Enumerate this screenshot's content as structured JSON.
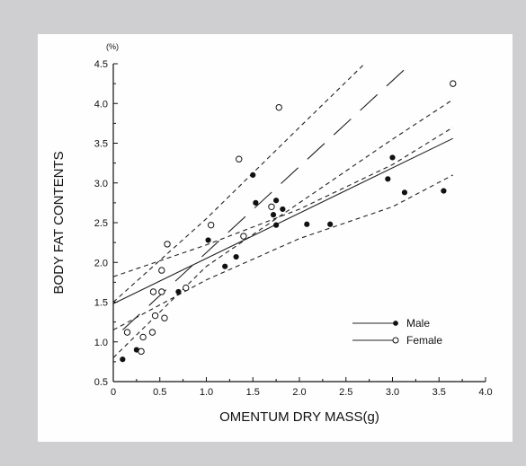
{
  "chart_data": {
    "type": "scatter",
    "xlabel": "OMENTUM DRY MASS(g)",
    "ylabel": "BODY FAT CONTENTS",
    "y_unit": "(%)",
    "xlim": [
      0,
      4.0
    ],
    "ylim": [
      0.5,
      4.5
    ],
    "x_ticks": [
      "0",
      "0.5",
      "1.0",
      "1.5",
      "2.0",
      "2.5",
      "3.0",
      "3.5",
      "4.0"
    ],
    "y_ticks": [
      "0.5",
      "1.0",
      "1.5",
      "2.0",
      "2.5",
      "3.0",
      "3.5",
      "4.0",
      "4.5"
    ],
    "legend_position": "bottom-right",
    "grid": false,
    "series": [
      {
        "name": "Male",
        "marker": "filled-circle",
        "line_style": "solid",
        "points": [
          [
            0.1,
            0.78
          ],
          [
            0.25,
            0.9
          ],
          [
            0.7,
            1.63
          ],
          [
            1.02,
            2.28
          ],
          [
            1.2,
            1.95
          ],
          [
            1.32,
            2.07
          ],
          [
            1.5,
            3.1
          ],
          [
            1.53,
            2.75
          ],
          [
            1.72,
            2.6
          ],
          [
            1.75,
            2.47
          ],
          [
            1.75,
            2.78
          ],
          [
            1.82,
            2.67
          ],
          [
            2.08,
            2.48
          ],
          [
            2.33,
            2.48
          ],
          [
            2.95,
            3.05
          ],
          [
            3.0,
            3.32
          ],
          [
            3.13,
            2.88
          ],
          [
            3.55,
            2.9
          ]
        ],
        "fit": {
          "x": [
            0,
            3.65
          ],
          "y": [
            1.48,
            3.56
          ]
        },
        "ci_upper": {
          "x": [
            0,
            1.0,
            2.0,
            3.0,
            3.65
          ],
          "y": [
            1.82,
            2.22,
            2.67,
            3.23,
            3.7
          ]
        },
        "ci_lower": {
          "x": [
            0,
            1.0,
            2.0,
            3.0,
            3.65
          ],
          "y": [
            1.15,
            1.78,
            2.3,
            2.7,
            3.1
          ]
        }
      },
      {
        "name": "Female",
        "marker": "open-circle",
        "line_style": "long-dash",
        "points": [
          [
            0.15,
            1.12
          ],
          [
            0.3,
            0.88
          ],
          [
            0.32,
            1.06
          ],
          [
            0.42,
            1.12
          ],
          [
            0.43,
            1.63
          ],
          [
            0.45,
            1.33
          ],
          [
            0.52,
            1.63
          ],
          [
            0.52,
            1.9
          ],
          [
            0.55,
            1.3
          ],
          [
            0.58,
            2.23
          ],
          [
            0.78,
            1.68
          ],
          [
            1.05,
            2.47
          ],
          [
            1.35,
            3.3
          ],
          [
            1.4,
            2.33
          ],
          [
            1.7,
            2.7
          ],
          [
            1.78,
            3.95
          ],
          [
            3.65,
            4.25
          ]
        ],
        "fit": {
          "x": [
            0.1,
            3.15
          ],
          "y": [
            1.15,
            4.45
          ]
        },
        "ci_upper": {
          "x": [
            0,
            1.0,
            2.0,
            2.7
          ],
          "y": [
            1.5,
            2.55,
            3.7,
            4.5
          ]
        },
        "ci_lower": {
          "x": [
            0,
            1.0,
            2.0,
            3.0,
            3.65
          ],
          "y": [
            0.8,
            1.95,
            2.75,
            3.55,
            4.05
          ]
        }
      }
    ]
  }
}
